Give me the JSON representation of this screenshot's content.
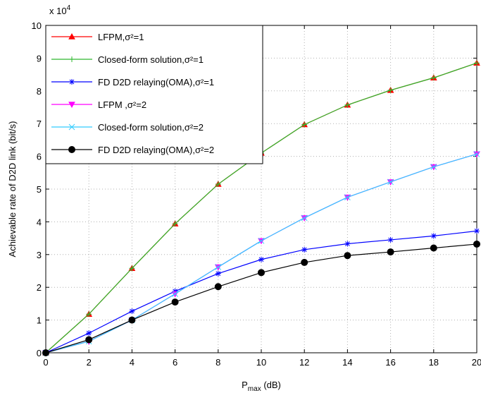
{
  "chart_data": {
    "type": "line",
    "x": [
      0,
      2,
      4,
      6,
      8,
      10,
      12,
      14,
      16,
      18,
      20
    ],
    "series": [
      {
        "name": "LFPM,σ²=1",
        "color": "#ff0000",
        "marker": "triangle-up",
        "values": [
          0,
          1.18,
          2.58,
          3.94,
          5.15,
          6.1,
          6.97,
          7.57,
          8.02,
          8.4,
          8.85
        ]
      },
      {
        "name": "Closed-form solution,σ²=1",
        "color": "#2eb82e",
        "marker": "plus",
        "values": [
          0,
          1.18,
          2.58,
          3.94,
          5.15,
          6.1,
          6.97,
          7.57,
          8.02,
          8.4,
          8.85
        ]
      },
      {
        "name": "FD D2D relaying(OMA),σ²=1",
        "color": "#0000ff",
        "marker": "asterisk",
        "values": [
          0,
          0.6,
          1.27,
          1.88,
          2.42,
          2.85,
          3.15,
          3.33,
          3.45,
          3.57,
          3.72
        ]
      },
      {
        "name": "LFPM ,σ²=2",
        "color": "#ff00ff",
        "marker": "triangle-down",
        "values": [
          0,
          0.35,
          1.0,
          1.8,
          2.62,
          3.42,
          4.12,
          4.75,
          5.22,
          5.68,
          6.07
        ]
      },
      {
        "name": "Closed-form solution,σ²=2",
        "color": "#33ccff",
        "marker": "x",
        "values": [
          0,
          0.35,
          1.0,
          1.8,
          2.62,
          3.42,
          4.12,
          4.75,
          5.22,
          5.68,
          6.07
        ]
      },
      {
        "name": "FD D2D relaying(OMA),σ²=2",
        "color": "#000000",
        "marker": "circle",
        "values": [
          0,
          0.4,
          1.0,
          1.55,
          2.02,
          2.45,
          2.76,
          2.97,
          3.08,
          3.2,
          3.32
        ]
      }
    ],
    "xlim": [
      0,
      20
    ],
    "xticks": [
      0,
      2,
      4,
      6,
      8,
      10,
      12,
      14,
      16,
      18,
      20
    ],
    "ylim": [
      0,
      10
    ],
    "yticks": [
      0,
      1,
      2,
      3,
      4,
      5,
      6,
      7,
      8,
      9,
      10
    ],
    "y_multiplier": [
      "x 10",
      "4"
    ],
    "xlabel": [
      "P",
      "max",
      " (dB)"
    ],
    "ylabel": "Achievable rate of D2D link (bit/s)",
    "grid": true,
    "legend": "upper left"
  }
}
